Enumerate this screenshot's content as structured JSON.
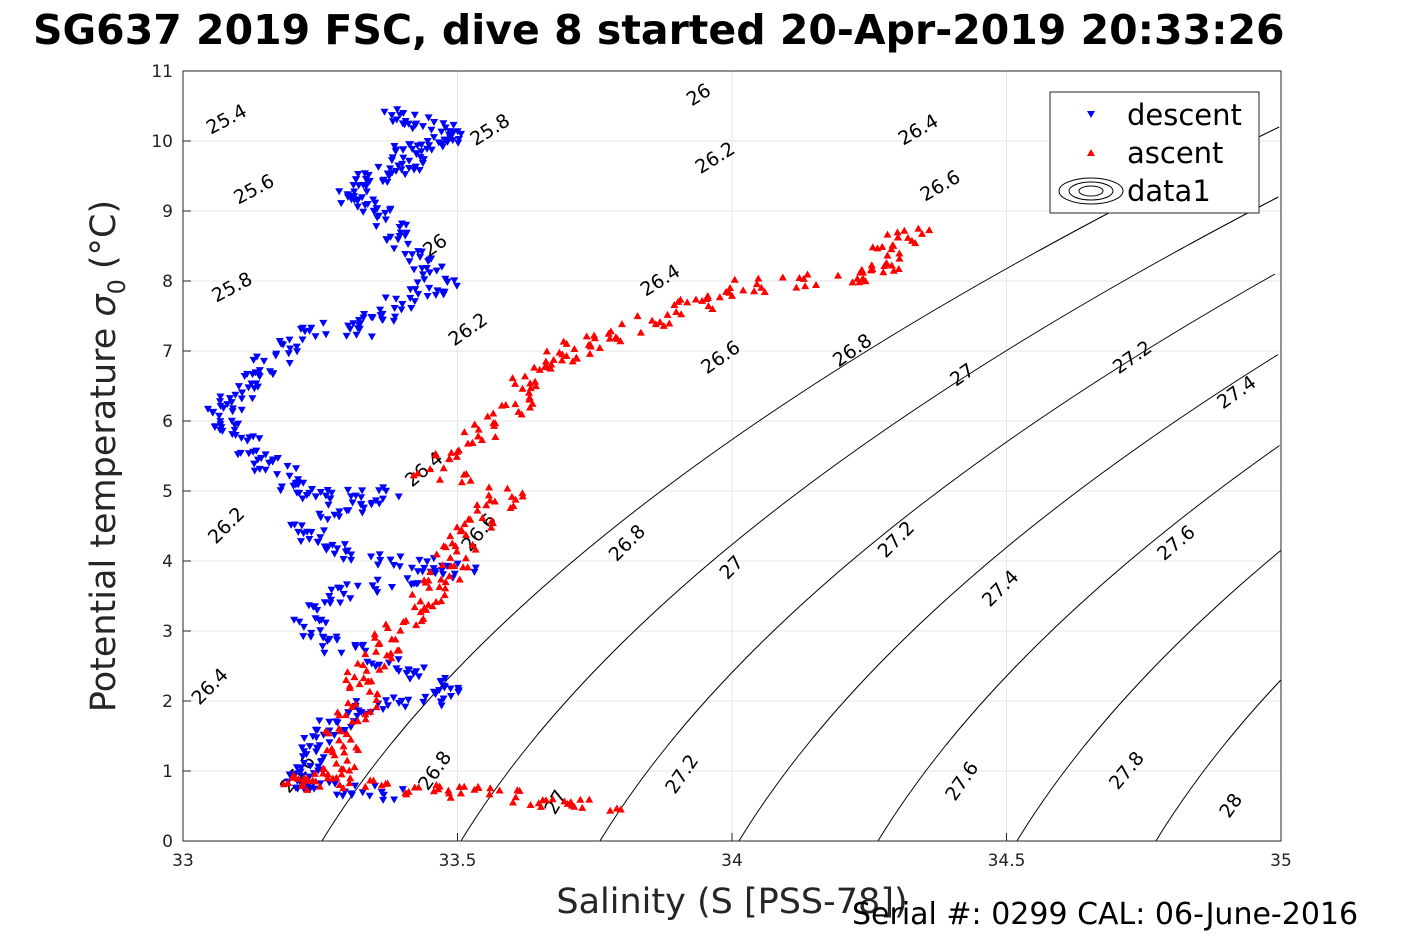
{
  "title": "SG637 2019 FSC, dive 8 started 20-Apr-2019 20:33:26",
  "footer": "Serial #: 0299 CAL: 06-June-2016",
  "chart_data": {
    "type": "scatter",
    "title": "SG637 2019 FSC, dive 8 started 20-Apr-2019 20:33:26",
    "xlabel": "Salinity (S [PSS-78])",
    "ylabel_text": "Potential temperature",
    "ylabel_symbol": "σ",
    "ylabel_sub": "0",
    "ylabel_unit": "(°C)",
    "xlim": [
      33,
      35
    ],
    "ylim": [
      0,
      11
    ],
    "xticks": [
      "33",
      "33.5",
      "34",
      "34.5",
      "35"
    ],
    "yticks": [
      "0",
      "1",
      "2",
      "3",
      "4",
      "5",
      "6",
      "7",
      "8",
      "9",
      "10",
      "11"
    ],
    "grid": true,
    "legend_position": "top-right",
    "legend": [
      {
        "label": "descent",
        "marker": "triangle-down",
        "color": "#0000ff"
      },
      {
        "label": "ascent",
        "marker": "triangle-up",
        "color": "#ff0000"
      },
      {
        "label": "data1",
        "marker": "contour",
        "color": "#000000"
      }
    ],
    "contour_levels": [
      25.4,
      25.6,
      25.8,
      26,
      26.2,
      26.4,
      26.6,
      26.8,
      27,
      27.2,
      27.4,
      27.6,
      27.8,
      28
    ],
    "contour_labels": [
      {
        "text": "25.4",
        "x": 33.08,
        "y": 10.3,
        "angle": -28
      },
      {
        "text": "25.6",
        "x": 33.13,
        "y": 9.3,
        "angle": -28
      },
      {
        "text": "25.8",
        "x": 33.09,
        "y": 7.9,
        "angle": -28
      },
      {
        "text": "25.8",
        "x": 33.56,
        "y": 10.15,
        "angle": -32
      },
      {
        "text": "26",
        "x": 33.46,
        "y": 8.5,
        "angle": -35
      },
      {
        "text": "26",
        "x": 33.94,
        "y": 10.65,
        "angle": -32
      },
      {
        "text": "26.2",
        "x": 33.08,
        "y": 4.5,
        "angle": -45
      },
      {
        "text": "26.2",
        "x": 33.52,
        "y": 7.3,
        "angle": -35
      },
      {
        "text": "26.2",
        "x": 33.97,
        "y": 9.75,
        "angle": -32
      },
      {
        "text": "26.4",
        "x": 33.05,
        "y": 2.2,
        "angle": -45
      },
      {
        "text": "26.4",
        "x": 33.44,
        "y": 5.3,
        "angle": -40
      },
      {
        "text": "26.4",
        "x": 33.87,
        "y": 8.0,
        "angle": -32
      },
      {
        "text": "26.4",
        "x": 34.34,
        "y": 10.15,
        "angle": -30
      },
      {
        "text": "26.6",
        "x": 33.21,
        "y": 0.95,
        "angle": -50
      },
      {
        "text": "26.6",
        "x": 33.54,
        "y": 4.4,
        "angle": -50
      },
      {
        "text": "26.6",
        "x": 33.98,
        "y": 6.9,
        "angle": -35
      },
      {
        "text": "26.6",
        "x": 34.38,
        "y": 9.35,
        "angle": -30
      },
      {
        "text": "26.8",
        "x": 33.46,
        "y": 1.0,
        "angle": -55
      },
      {
        "text": "26.8",
        "x": 33.81,
        "y": 4.25,
        "angle": -45
      },
      {
        "text": "26.8",
        "x": 34.22,
        "y": 7.0,
        "angle": -35
      },
      {
        "text": "27",
        "x": 33.68,
        "y": 0.55,
        "angle": -60
      },
      {
        "text": "27",
        "x": 34.0,
        "y": 3.9,
        "angle": -45
      },
      {
        "text": "27",
        "x": 34.42,
        "y": 6.65,
        "angle": -35
      },
      {
        "text": "27.2",
        "x": 33.91,
        "y": 0.95,
        "angle": -55
      },
      {
        "text": "27.2",
        "x": 34.3,
        "y": 4.3,
        "angle": -45
      },
      {
        "text": "27.2",
        "x": 34.73,
        "y": 6.9,
        "angle": -35
      },
      {
        "text": "27.4",
        "x": 34.49,
        "y": 3.6,
        "angle": -45
      },
      {
        "text": "27.4",
        "x": 34.92,
        "y": 6.4,
        "angle": -35
      },
      {
        "text": "27.6",
        "x": 34.42,
        "y": 0.85,
        "angle": -55
      },
      {
        "text": "27.6",
        "x": 34.81,
        "y": 4.25,
        "angle": -40
      },
      {
        "text": "27.8",
        "x": 34.72,
        "y": 1.0,
        "angle": -50
      },
      {
        "text": "28",
        "x": 34.91,
        "y": 0.5,
        "angle": -55
      }
    ],
    "descent_path": [
      [
        33.38,
        10.35
      ],
      [
        33.4,
        10.3
      ],
      [
        33.45,
        10.2
      ],
      [
        33.5,
        10.15
      ],
      [
        33.48,
        10.0
      ],
      [
        33.43,
        9.9
      ],
      [
        33.4,
        9.8
      ],
      [
        33.43,
        9.7
      ],
      [
        33.4,
        9.6
      ],
      [
        33.36,
        9.5
      ],
      [
        33.33,
        9.4
      ],
      [
        33.3,
        9.25
      ],
      [
        33.32,
        9.1
      ],
      [
        33.35,
        9.0
      ],
      [
        33.38,
        8.8
      ],
      [
        33.4,
        8.6
      ],
      [
        33.43,
        8.3
      ],
      [
        33.45,
        8.1
      ],
      [
        33.47,
        7.9
      ],
      [
        33.42,
        7.8
      ],
      [
        33.38,
        7.6
      ],
      [
        33.35,
        7.45
      ],
      [
        33.32,
        7.3
      ],
      [
        33.22,
        7.3
      ],
      [
        33.18,
        7.0
      ],
      [
        33.15,
        6.8
      ],
      [
        33.12,
        6.6
      ],
      [
        33.1,
        6.4
      ],
      [
        33.08,
        6.2
      ],
      [
        33.06,
        6.0
      ],
      [
        33.1,
        5.8
      ],
      [
        33.12,
        5.6
      ],
      [
        33.15,
        5.4
      ],
      [
        33.18,
        5.2
      ],
      [
        33.2,
        5.0
      ],
      [
        33.25,
        4.9
      ],
      [
        33.3,
        4.95
      ],
      [
        33.37,
        4.95
      ],
      [
        33.28,
        4.7
      ],
      [
        33.22,
        4.5
      ],
      [
        33.25,
        4.3
      ],
      [
        33.3,
        4.1
      ],
      [
        33.38,
        4.0
      ],
      [
        33.45,
        3.95
      ],
      [
        33.52,
        3.9
      ],
      [
        33.4,
        3.7
      ],
      [
        33.3,
        3.6
      ],
      [
        33.25,
        3.4
      ],
      [
        33.23,
        3.1
      ],
      [
        33.27,
        2.9
      ],
      [
        33.3,
        2.7
      ],
      [
        33.38,
        2.5
      ],
      [
        33.45,
        2.3
      ],
      [
        33.5,
        2.15
      ],
      [
        33.45,
        2.0
      ],
      [
        33.35,
        1.95
      ],
      [
        33.3,
        1.8
      ],
      [
        33.27,
        1.6
      ],
      [
        33.25,
        1.4
      ],
      [
        33.24,
        1.2
      ],
      [
        33.22,
        1.0
      ],
      [
        33.2,
        0.85
      ],
      [
        33.25,
        0.75
      ],
      [
        33.32,
        0.7
      ],
      [
        33.4,
        0.68
      ]
    ],
    "ascent_path": [
      [
        34.35,
        8.7
      ],
      [
        34.3,
        8.6
      ],
      [
        34.28,
        8.3
      ],
      [
        34.25,
        8.1
      ],
      [
        34.2,
        8.05
      ],
      [
        34.05,
        7.95
      ],
      [
        33.98,
        7.8
      ],
      [
        33.9,
        7.6
      ],
      [
        33.82,
        7.3
      ],
      [
        33.75,
        7.15
      ],
      [
        33.7,
        7.0
      ],
      [
        33.65,
        6.85
      ],
      [
        33.62,
        6.5
      ],
      [
        33.6,
        6.2
      ],
      [
        33.55,
        5.9
      ],
      [
        33.5,
        5.6
      ],
      [
        33.45,
        5.3
      ],
      [
        33.6,
        5.0
      ],
      [
        33.55,
        4.7
      ],
      [
        33.52,
        4.4
      ],
      [
        33.5,
        4.1
      ],
      [
        33.47,
        3.8
      ],
      [
        33.45,
        3.5
      ],
      [
        33.42,
        3.2
      ],
      [
        33.38,
        2.9
      ],
      [
        33.35,
        2.6
      ],
      [
        33.33,
        2.3
      ],
      [
        33.32,
        2.0
      ],
      [
        33.3,
        1.7
      ],
      [
        33.28,
        1.4
      ],
      [
        33.3,
        1.1
      ],
      [
        33.25,
        0.9
      ],
      [
        33.2,
        0.85
      ],
      [
        33.3,
        0.8
      ],
      [
        33.42,
        0.75
      ],
      [
        33.5,
        0.7
      ],
      [
        33.6,
        0.65
      ],
      [
        33.7,
        0.55
      ],
      [
        33.78,
        0.5
      ]
    ]
  }
}
